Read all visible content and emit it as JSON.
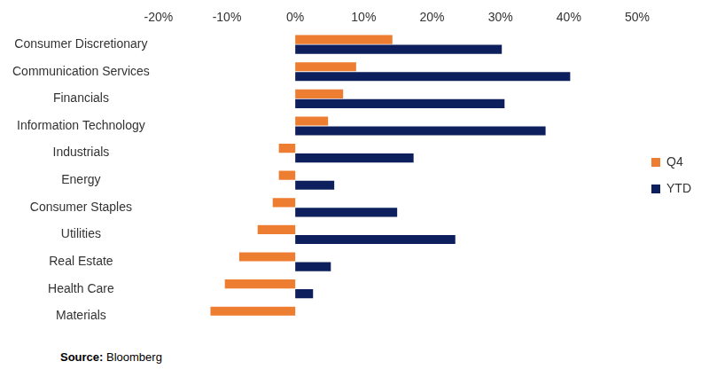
{
  "chart_data": {
    "type": "bar",
    "orientation": "horizontal",
    "categories": [
      "Consumer Discretionary",
      "Communication Services",
      "Financials",
      "Information Technology",
      "Industrials",
      "Energy",
      "Consumer Staples",
      "Utilities",
      "Real Estate",
      "Health Care",
      "Materials"
    ],
    "series": [
      {
        "name": "Q4",
        "color": "#ED7D31",
        "values": [
          14.2,
          8.9,
          7.0,
          4.8,
          -2.4,
          -2.4,
          -3.3,
          -5.5,
          -8.2,
          -10.3,
          -12.4
        ]
      },
      {
        "name": "YTD",
        "color": "#0D1F5C",
        "values": [
          30.2,
          40.2,
          30.6,
          36.6,
          17.3,
          5.7,
          14.9,
          23.4,
          5.2,
          2.6,
          0.0
        ]
      }
    ],
    "xlim": [
      -20,
      50
    ],
    "xticks": [
      {
        "value": -20,
        "label": "-20%"
      },
      {
        "value": -10,
        "label": "-10%"
      },
      {
        "value": 0,
        "label": "0%"
      },
      {
        "value": 10,
        "label": "10%"
      },
      {
        "value": 20,
        "label": "20%"
      },
      {
        "value": 30,
        "label": "30%"
      },
      {
        "value": 40,
        "label": "40%"
      },
      {
        "value": 50,
        "label": "50%"
      }
    ],
    "grid": false,
    "legend": "right",
    "annotations": [
      "Source: Bloomberg"
    ]
  }
}
